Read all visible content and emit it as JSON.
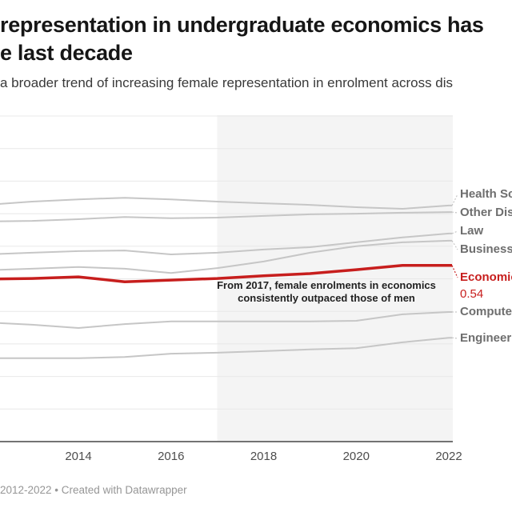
{
  "header": {
    "title_line1": "representation in undergraduate economics has",
    "title_line2": "e last decade",
    "subtitle": "a broader trend of increasing female representation in enrolment across dis"
  },
  "annotation": {
    "text": "From 2017, female enrolments in economics consistently outpaced those of men"
  },
  "footer": {
    "text": "2012-2022 • Created with Datawrapper"
  },
  "colors": {
    "accent_red": "#c71e1d",
    "line_gray": "#c6c6c6",
    "highlight_shade": "#f4f4f4",
    "gridline": "#e8e8e8",
    "axis": "#737373"
  },
  "chart_data": {
    "type": "line",
    "x": [
      2012,
      2013,
      2014,
      2015,
      2016,
      2017,
      2018,
      2019,
      2020,
      2021,
      2022
    ],
    "x_ticks": [
      "2014",
      "2016",
      "2018",
      "2020",
      "2022"
    ],
    "ylim": [
      0,
      1.0
    ],
    "grid_interval": 0.1,
    "grid": true,
    "legend_position": "right-edge-labels",
    "highlight_region": {
      "from": 2017,
      "to": 2022
    },
    "series": [
      {
        "label": "Health Sc",
        "highlight": false,
        "values": [
          0.727,
          0.737,
          0.744,
          0.749,
          0.744,
          0.737,
          0.732,
          0.727,
          0.72,
          0.715,
          0.725
        ]
      },
      {
        "label": "Other Dis",
        "highlight": false,
        "values": [
          0.676,
          0.678,
          0.683,
          0.69,
          0.686,
          0.688,
          0.693,
          0.698,
          0.7,
          0.703,
          0.705
        ]
      },
      {
        "label": "Law",
        "highlight": false,
        "values": [
          0.575,
          0.58,
          0.585,
          0.587,
          0.575,
          0.58,
          0.59,
          0.597,
          0.612,
          0.627,
          0.639
        ]
      },
      {
        "label": "Business",
        "highlight": false,
        "values": [
          0.526,
          0.531,
          0.536,
          0.531,
          0.518,
          0.533,
          0.553,
          0.58,
          0.6,
          0.612,
          0.617
        ]
      },
      {
        "label": "Economics",
        "highlight": true,
        "end_value_label": "0.54",
        "values": [
          0.499,
          0.501,
          0.506,
          0.491,
          0.496,
          0.501,
          0.509,
          0.516,
          0.528,
          0.541,
          0.541
        ]
      },
      {
        "label": "Compute",
        "highlight": false,
        "values": [
          0.366,
          0.359,
          0.349,
          0.361,
          0.369,
          0.369,
          0.369,
          0.369,
          0.371,
          0.391,
          0.398
        ]
      },
      {
        "label": "Engineer",
        "highlight": false,
        "values": [
          0.256,
          0.256,
          0.256,
          0.26,
          0.27,
          0.273,
          0.278,
          0.283,
          0.287,
          0.305,
          0.319
        ]
      }
    ]
  }
}
